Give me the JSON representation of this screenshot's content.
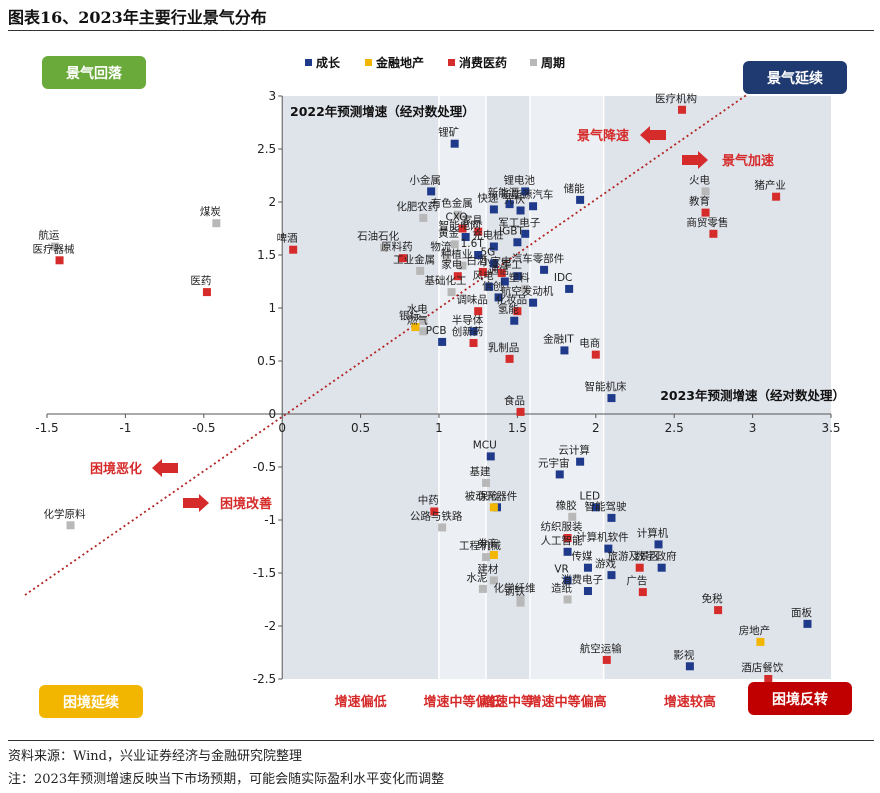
{
  "figure_title": "图表16、2023年主要行业景气分布",
  "source_note": "资料来源：Wind，兴业证券经济与金融研究院整理",
  "footnote": "注：2023年预测增速反映当下市场预期，可能会随实际盈利水平变化而调整",
  "colors": {
    "成长": "#1f3a8a",
    "金融地产": "#f2b600",
    "消费医药": "#d62b2b",
    "周期": "#b8b8b8",
    "region": "#dfe3ea",
    "region_mid": "#eceff3"
  },
  "chart_data": {
    "type": "scatter",
    "title": "",
    "xlabel": "2023年预测增速（经对数处理）",
    "ylabel": "2022年预测增速（经对数处理）",
    "xlim": [
      -1.5,
      3.5
    ],
    "ylim": [
      -2.5,
      3
    ],
    "xticks": [
      "-1.5",
      "-1",
      "-0.5",
      "0",
      "0.5",
      "1",
      "1.5",
      "2",
      "2.5",
      "3",
      "3.5"
    ],
    "yticks": [
      "-2.5",
      "-2",
      "-1.5",
      "-1",
      "-0.5",
      "0",
      "0.5",
      "1",
      "1.5",
      "2",
      "2.5",
      "3"
    ],
    "legend": [
      "成长",
      "金融地产",
      "消费医药",
      "周期"
    ],
    "quadrant_labels": {
      "top_left": "景气回落",
      "top_right": "景气延续",
      "bottom_left": "困境延续",
      "bottom_right": "困境反转"
    },
    "arrow_labels": {
      "decline": "景气降速",
      "accelerate": "景气加速",
      "worsen": "困境恶化",
      "improve": "困境改善"
    },
    "band_labels": [
      "增速偏低",
      "增速中等偏低",
      "增速中等",
      "增速中等偏高",
      "增速较高"
    ],
    "points": [
      {
        "name": "锂矿",
        "x": 1.1,
        "y": 2.55,
        "group": "成长"
      },
      {
        "name": "小金属",
        "x": 0.95,
        "y": 2.1,
        "group": "成长"
      },
      {
        "name": "锂电池",
        "x": 1.55,
        "y": 2.1,
        "group": "成长"
      },
      {
        "name": "新能源",
        "x": 1.45,
        "y": 1.98,
        "group": "成长"
      },
      {
        "name": "储能",
        "x": 1.9,
        "y": 2.02,
        "group": "成长"
      },
      {
        "name": "新能源汽车",
        "x": 1.6,
        "y": 1.96,
        "group": "成长"
      },
      {
        "name": "快递",
        "x": 1.35,
        "y": 1.93,
        "group": "成长"
      },
      {
        "name": "光伏",
        "x": 1.52,
        "y": 1.92,
        "group": "成长"
      },
      {
        "name": "有色金属",
        "x": 1.12,
        "y": 1.88,
        "group": "周期"
      },
      {
        "name": "化肥农药",
        "x": 0.9,
        "y": 1.85,
        "group": "周期"
      },
      {
        "name": "CXO",
        "x": 1.15,
        "y": 1.75,
        "group": "消费医药"
      },
      {
        "name": "家具",
        "x": 1.25,
        "y": 1.72,
        "group": "消费医药"
      },
      {
        "name": "军工电子",
        "x": 1.55,
        "y": 1.7,
        "group": "成长"
      },
      {
        "name": "智能电网",
        "x": 1.17,
        "y": 1.67,
        "group": "成长"
      },
      {
        "name": "黄金",
        "x": 1.1,
        "y": 1.6,
        "group": "周期"
      },
      {
        "name": "IGBT",
        "x": 1.5,
        "y": 1.62,
        "group": "成长"
      },
      {
        "name": "充电桩",
        "x": 1.35,
        "y": 1.58,
        "group": "成长"
      },
      {
        "name": "石油石化",
        "x": 0.65,
        "y": 1.57,
        "group": "周期"
      },
      {
        "name": "原料药",
        "x": 0.77,
        "y": 1.47,
        "group": "消费医药"
      },
      {
        "name": "物流",
        "x": 1.05,
        "y": 1.47,
        "group": "周期"
      },
      {
        "name": "1.6T",
        "x": 1.25,
        "y": 1.5,
        "group": "成长"
      },
      {
        "name": "5G",
        "x": 1.35,
        "y": 1.42,
        "group": "成长"
      },
      {
        "name": "种植业",
        "x": 1.15,
        "y": 1.4,
        "group": "周期"
      },
      {
        "name": "白酒",
        "x": 1.28,
        "y": 1.34,
        "group": "消费医药"
      },
      {
        "name": "小家电",
        "x": 1.4,
        "y": 1.33,
        "group": "消费医药"
      },
      {
        "name": "汽车零部件",
        "x": 1.67,
        "y": 1.36,
        "group": "成长"
      },
      {
        "name": "军工",
        "x": 1.5,
        "y": 1.3,
        "group": "成长"
      },
      {
        "name": "工业金属",
        "x": 0.88,
        "y": 1.35,
        "group": "周期"
      },
      {
        "name": "家电",
        "x": 1.12,
        "y": 1.3,
        "group": "消费医药"
      },
      {
        "name": "风电",
        "x": 1.32,
        "y": 1.2,
        "group": "成长"
      },
      {
        "name": "通信",
        "x": 1.42,
        "y": 1.25,
        "group": "成长"
      },
      {
        "name": "塑料",
        "x": 1.55,
        "y": 1.18,
        "group": "周期"
      },
      {
        "name": "IDC",
        "x": 1.83,
        "y": 1.18,
        "group": "成长"
      },
      {
        "name": "基础化工",
        "x": 1.08,
        "y": 1.15,
        "group": "周期"
      },
      {
        "name": "信创",
        "x": 1.38,
        "y": 1.1,
        "group": "成长"
      },
      {
        "name": "航空发动机",
        "x": 1.6,
        "y": 1.05,
        "group": "成长"
      },
      {
        "name": "调味品",
        "x": 1.25,
        "y": 0.97,
        "group": "消费医药"
      },
      {
        "name": "化妆品",
        "x": 1.5,
        "y": 0.97,
        "group": "消费医药"
      },
      {
        "name": "水电",
        "x": 0.9,
        "y": 0.88,
        "group": "周期"
      },
      {
        "name": "氢能",
        "x": 1.48,
        "y": 0.88,
        "group": "成长"
      },
      {
        "name": "银行",
        "x": 0.85,
        "y": 0.82,
        "group": "金融地产"
      },
      {
        "name": "燃气",
        "x": 0.9,
        "y": 0.78,
        "group": "周期"
      },
      {
        "name": "半导体",
        "x": 1.22,
        "y": 0.78,
        "group": "成长"
      },
      {
        "name": "PCB",
        "x": 1.02,
        "y": 0.68,
        "group": "成长"
      },
      {
        "name": "创新药",
        "x": 1.22,
        "y": 0.67,
        "group": "消费医药"
      },
      {
        "name": "金融IT",
        "x": 1.8,
        "y": 0.6,
        "group": "成长"
      },
      {
        "name": "电商",
        "x": 2.0,
        "y": 0.56,
        "group": "消费医药"
      },
      {
        "name": "乳制品",
        "x": 1.45,
        "y": 0.52,
        "group": "消费医药"
      },
      {
        "name": "智能机床",
        "x": 2.1,
        "y": 0.15,
        "group": "成长"
      },
      {
        "name": "食品",
        "x": 1.52,
        "y": 0.02,
        "group": "消费医药"
      },
      {
        "name": "医疗机构",
        "x": 2.55,
        "y": 2.87,
        "group": "消费医药"
      },
      {
        "name": "火电",
        "x": 2.7,
        "y": 2.1,
        "group": "周期"
      },
      {
        "name": "猪产业",
        "x": 3.15,
        "y": 2.05,
        "group": "消费医药"
      },
      {
        "name": "教育",
        "x": 2.7,
        "y": 1.9,
        "group": "消费医药"
      },
      {
        "name": "商贸零售",
        "x": 2.75,
        "y": 1.7,
        "group": "消费医药"
      },
      {
        "name": "航运",
        "x": -1.45,
        "y": 1.58,
        "group": "周期"
      },
      {
        "name": "医疗器械",
        "x": -1.42,
        "y": 1.45,
        "group": "消费医药"
      },
      {
        "name": "煤炭",
        "x": -0.42,
        "y": 1.8,
        "group": "周期"
      },
      {
        "name": "医药",
        "x": -0.48,
        "y": 1.15,
        "group": "消费医药"
      },
      {
        "name": "啤酒",
        "x": 0.07,
        "y": 1.55,
        "group": "消费医药"
      },
      {
        "name": "MCU",
        "x": 1.33,
        "y": -0.4,
        "group": "成长"
      },
      {
        "name": "元宇宙",
        "x": 1.77,
        "y": -0.57,
        "group": "成长"
      },
      {
        "name": "云计算",
        "x": 1.9,
        "y": -0.45,
        "group": "成长"
      },
      {
        "name": "基建",
        "x": 1.3,
        "y": -0.65,
        "group": "周期"
      },
      {
        "name": "中药",
        "x": 0.97,
        "y": -0.92,
        "group": "消费医药"
      },
      {
        "name": "被动元器件",
        "x": 1.37,
        "y": -0.88,
        "group": "成长"
      },
      {
        "name": "保险",
        "x": 1.35,
        "y": -0.88,
        "group": "金融地产"
      },
      {
        "name": "LED",
        "x": 2.0,
        "y": -0.88,
        "group": "成长"
      },
      {
        "name": "智能驾驶",
        "x": 2.1,
        "y": -0.98,
        "group": "成长"
      },
      {
        "name": "化学原料",
        "x": -1.35,
        "y": -1.05,
        "group": "周期"
      },
      {
        "name": "橡胶",
        "x": 1.85,
        "y": -0.97,
        "group": "周期"
      },
      {
        "name": "公路与铁路",
        "x": 1.02,
        "y": -1.07,
        "group": "周期"
      },
      {
        "name": "纺织服装",
        "x": 1.82,
        "y": -1.17,
        "group": "消费医药"
      },
      {
        "name": "计算机软件",
        "x": 2.08,
        "y": -1.27,
        "group": "成长"
      },
      {
        "name": "计算机",
        "x": 2.4,
        "y": -1.23,
        "group": "成长"
      },
      {
        "name": "人工智能",
        "x": 1.82,
        "y": -1.3,
        "group": "成长"
      },
      {
        "name": "券商",
        "x": 1.35,
        "y": -1.33,
        "group": "金融地产"
      },
      {
        "name": "工程机械",
        "x": 1.3,
        "y": -1.35,
        "group": "周期"
      },
      {
        "name": "传媒",
        "x": 1.95,
        "y": -1.45,
        "group": "成长"
      },
      {
        "name": "旅游及景区",
        "x": 2.28,
        "y": -1.45,
        "group": "消费医药"
      },
      {
        "name": "数字政府",
        "x": 2.42,
        "y": -1.45,
        "group": "成长"
      },
      {
        "name": "建材",
        "x": 1.35,
        "y": -1.57,
        "group": "周期"
      },
      {
        "name": "VR",
        "x": 1.82,
        "y": -1.57,
        "group": "成长"
      },
      {
        "name": "游戏",
        "x": 2.1,
        "y": -1.52,
        "group": "成长"
      },
      {
        "name": "水泥",
        "x": 1.28,
        "y": -1.65,
        "group": "周期"
      },
      {
        "name": "化学纤维",
        "x": 1.52,
        "y": -1.75,
        "group": "周期"
      },
      {
        "name": "广告",
        "x": 2.3,
        "y": -1.68,
        "group": "消费医药"
      },
      {
        "name": "造纸",
        "x": 1.82,
        "y": -1.75,
        "group": "周期"
      },
      {
        "name": "消费电子",
        "x": 1.95,
        "y": -1.67,
        "group": "成长"
      },
      {
        "name": "钢铁",
        "x": 1.52,
        "y": -1.78,
        "group": "周期"
      },
      {
        "name": "免税",
        "x": 2.78,
        "y": -1.85,
        "group": "消费医药"
      },
      {
        "name": "面板",
        "x": 3.35,
        "y": -1.98,
        "group": "成长"
      },
      {
        "name": "房地产",
        "x": 3.05,
        "y": -2.15,
        "group": "金融地产"
      },
      {
        "name": "航空运输",
        "x": 2.07,
        "y": -2.32,
        "group": "消费医药"
      },
      {
        "name": "影视",
        "x": 2.6,
        "y": -2.38,
        "group": "成长"
      },
      {
        "name": "酒店餐饮",
        "x": 3.1,
        "y": -2.5,
        "group": "消费医药"
      }
    ]
  }
}
